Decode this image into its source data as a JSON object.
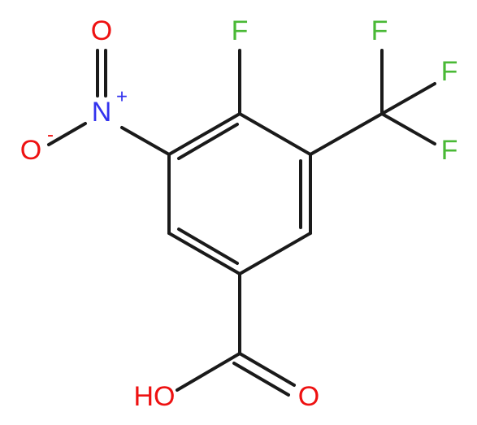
{
  "atoms": [
    "F",
    "F",
    "F",
    "F",
    "N",
    "+",
    "O",
    "O",
    "-",
    "O",
    "HO"
  ]
}
